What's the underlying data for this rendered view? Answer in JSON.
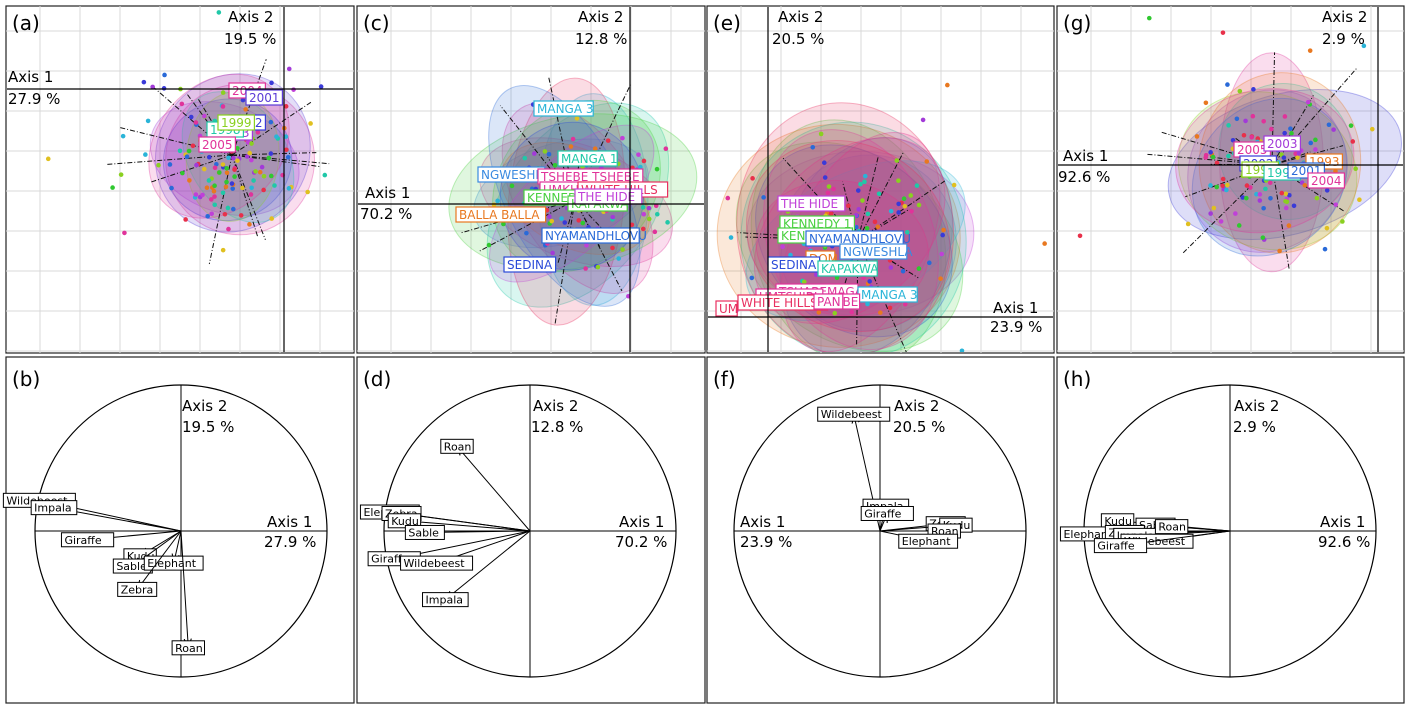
{
  "chart_data": [
    {
      "id": "a",
      "type": "scatter",
      "label": "(a)",
      "axis1": {
        "name": "Axis 1",
        "pct": "27.9 %"
      },
      "axis2": {
        "name": "Axis 2",
        "pct": "19.5 %"
      },
      "group_labels": [
        {
          "text": "2004",
          "color": "#e0339a"
        },
        {
          "text": "2001",
          "color": "#5a3bd6"
        },
        {
          "text": "2002",
          "color": "#3a3ad8"
        },
        {
          "text": "2003",
          "color": "#a23ad8"
        },
        {
          "text": "1998",
          "color": "#20c8a8"
        },
        {
          "text": "1999",
          "color": "#8ad020"
        },
        {
          "text": "2005",
          "color": "#e0339a"
        }
      ]
    },
    {
      "id": "b",
      "type": "correlation-circle",
      "label": "(b)",
      "axis1": {
        "name": "Axis 1",
        "pct": "27.9 %"
      },
      "axis2": {
        "name": "Axis 2",
        "pct": "19.5 %"
      },
      "vectors": [
        {
          "name": "Wildebeest",
          "x": -0.97,
          "y": 0.21
        },
        {
          "name": "Impala",
          "x": -0.87,
          "y": 0.16
        },
        {
          "name": "Giraffe",
          "x": -0.64,
          "y": -0.06
        },
        {
          "name": "Kudu",
          "x": -0.28,
          "y": -0.17
        },
        {
          "name": "Sable",
          "x": -0.33,
          "y": -0.24
        },
        {
          "name": "Elephant",
          "x": -0.05,
          "y": -0.22
        },
        {
          "name": "Zebra",
          "x": -0.3,
          "y": -0.4
        },
        {
          "name": "Roan",
          "x": 0.05,
          "y": -0.8
        }
      ]
    },
    {
      "id": "c",
      "type": "scatter",
      "label": "(c)",
      "axis1": {
        "name": "Axis 1",
        "pct": "70.2 %"
      },
      "axis2": {
        "name": "Axis 2",
        "pct": "12.8 %"
      },
      "group_labels": [
        {
          "text": "MANGA 3",
          "color": "#2ab4d8"
        },
        {
          "text": "MANGA 1",
          "color": "#20c8a8"
        },
        {
          "text": "NGWESHLA",
          "color": "#3a8ae0"
        },
        {
          "text": "TSHEBE TSHEBE",
          "color": "#e0339a"
        },
        {
          "text": "UMKHO",
          "color": "#e0339a"
        },
        {
          "text": "WHITE HILLS",
          "color": "#e83060"
        },
        {
          "text": "KENNEDY",
          "color": "#4ad040"
        },
        {
          "text": "KAPAKWA",
          "color": "#4ad040"
        },
        {
          "text": "BALLA BALLA",
          "color": "#e87820"
        },
        {
          "text": "NYAMANDHLOVU",
          "color": "#2a6ad8"
        },
        {
          "text": "SEDINA",
          "color": "#2a4ad8"
        },
        {
          "text": "THE HIDE",
          "color": "#c040d8"
        }
      ]
    },
    {
      "id": "d",
      "type": "correlation-circle",
      "label": "(d)",
      "axis1": {
        "name": "Axis 1",
        "pct": "70.2 %"
      },
      "axis2": {
        "name": "Axis 2",
        "pct": "12.8 %"
      },
      "vectors": [
        {
          "name": "Roan",
          "x": -0.5,
          "y": 0.58
        },
        {
          "name": "Elephant",
          "x": -0.96,
          "y": 0.13
        },
        {
          "name": "Zebra",
          "x": -0.88,
          "y": 0.12
        },
        {
          "name": "Kudu",
          "x": -0.86,
          "y": 0.07
        },
        {
          "name": "Sable",
          "x": -0.72,
          "y": -0.01
        },
        {
          "name": "Giraffe",
          "x": -0.93,
          "y": -0.19
        },
        {
          "name": "Wildebeest",
          "x": -0.64,
          "y": -0.22
        },
        {
          "name": "Impala",
          "x": -0.58,
          "y": -0.47
        }
      ]
    },
    {
      "id": "e",
      "type": "scatter",
      "label": "(e)",
      "axis1": {
        "name": "Axis 1",
        "pct": "23.9 %"
      },
      "axis2": {
        "name": "Axis 2",
        "pct": "20.5 %"
      },
      "group_labels": [
        {
          "text": "THE HIDE",
          "color": "#c040d8"
        },
        {
          "text": "KENNEDY 1",
          "color": "#4ad040"
        },
        {
          "text": "KENNEDY 2",
          "color": "#4ad040"
        },
        {
          "text": "NYAMANDHLOVU",
          "color": "#2a6ad8"
        },
        {
          "text": "NGWESHLA",
          "color": "#3a8ae0"
        },
        {
          "text": "DOM",
          "color": "#e87820"
        },
        {
          "text": "SEDINA",
          "color": "#2a4ad8"
        },
        {
          "text": "KAPAKWA",
          "color": "#20c8a8"
        },
        {
          "text": "TSHABEMAGA",
          "color": "#e0339a"
        },
        {
          "text": "MANGA 3",
          "color": "#2ab4d8"
        },
        {
          "text": "UMTSHIBI",
          "color": "#e0339a"
        },
        {
          "text": "TSHEBE",
          "color": "#e0339a"
        },
        {
          "text": "UM",
          "color": "#e83060"
        },
        {
          "text": "WHITE HILLS",
          "color": "#e83060"
        },
        {
          "text": "PAN",
          "color": "#e0339a"
        }
      ]
    },
    {
      "id": "f",
      "type": "correlation-circle",
      "label": "(f)",
      "axis1": {
        "name": "Axis 1",
        "pct": "23.9 %"
      },
      "axis2": {
        "name": "Axis 2",
        "pct": "20.5 %"
      },
      "vectors": [
        {
          "name": "Wildebeest",
          "x": -0.18,
          "y": 0.8
        },
        {
          "name": "Impala",
          "x": 0.04,
          "y": 0.17
        },
        {
          "name": "Giraffe",
          "x": 0.05,
          "y": 0.12
        },
        {
          "name": "Zebra",
          "x": 0.45,
          "y": 0.05
        },
        {
          "name": "Kudu",
          "x": 0.52,
          "y": 0.04
        },
        {
          "name": "Roan",
          "x": 0.44,
          "y": 0.0
        },
        {
          "name": "Elephant",
          "x": 0.33,
          "y": -0.07
        }
      ]
    },
    {
      "id": "g",
      "type": "scatter",
      "label": "(g)",
      "axis1": {
        "name": "Axis 1",
        "pct": "92.6 %"
      },
      "axis2": {
        "name": "Axis 2",
        "pct": "2.9 %"
      },
      "group_labels": [
        {
          "text": "2005",
          "color": "#e0339a"
        },
        {
          "text": "2003",
          "color": "#a23ad8"
        },
        {
          "text": "2002",
          "color": "#3a3ad8"
        },
        {
          "text": "1999",
          "color": "#8ad020"
        },
        {
          "text": "1998",
          "color": "#20c8a8"
        },
        {
          "text": "1993",
          "color": "#e87820"
        },
        {
          "text": "2001",
          "color": "#2a6ad8"
        },
        {
          "text": "2004",
          "color": "#e0339a"
        }
      ]
    },
    {
      "id": "h",
      "type": "correlation-circle",
      "label": "(h)",
      "axis1": {
        "name": "Axis 1",
        "pct": "92.6 %"
      },
      "axis2": {
        "name": "Axis 2",
        "pct": "2.9 %"
      },
      "vectors": [
        {
          "name": "Kudu",
          "x": -0.77,
          "y": 0.07
        },
        {
          "name": "Sable",
          "x": -0.51,
          "y": 0.04
        },
        {
          "name": "Elephant",
          "x": -0.96,
          "y": -0.02
        },
        {
          "name": "Zebra",
          "x": -0.72,
          "y": -0.01
        },
        {
          "name": "Impala",
          "x": -0.64,
          "y": -0.03
        },
        {
          "name": "Wildebeest",
          "x": -0.5,
          "y": -0.07
        },
        {
          "name": "Giraffe",
          "x": -0.75,
          "y": -0.1
        },
        {
          "name": "Roan",
          "x": -0.4,
          "y": 0.03
        }
      ]
    }
  ]
}
